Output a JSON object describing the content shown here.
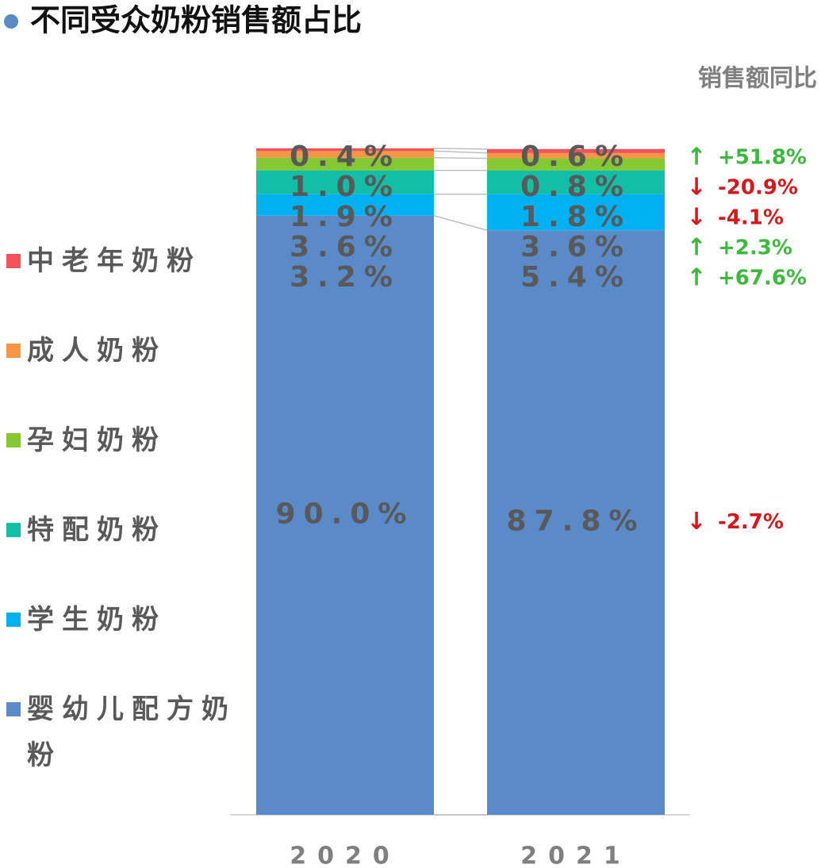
{
  "chart_data": {
    "type": "stacked_bar",
    "title": "不同受众奶粉销售额占比",
    "yoy_title": "销售额同比",
    "categories": [
      "2020",
      "2021"
    ],
    "series": [
      {
        "name": "婴幼儿配方奶粉",
        "color": "#5b8ac9",
        "values": [
          90.0,
          87.8
        ],
        "value_labels": [
          "90.0%",
          "87.8%"
        ],
        "yoy": -2.7,
        "yoy_label": "-2.7%"
      },
      {
        "name": "学生奶粉",
        "color": "#00b0f0",
        "values": [
          3.2,
          5.4
        ],
        "value_labels": [
          "3.2%",
          "5.4%"
        ],
        "yoy": 67.6,
        "yoy_label": "+67.6%"
      },
      {
        "name": "特配奶粉",
        "color": "#12bfa6",
        "values": [
          3.6,
          3.6
        ],
        "value_labels": [
          "3.6%",
          "3.6%"
        ],
        "yoy": 2.3,
        "yoy_label": "+2.3%"
      },
      {
        "name": "孕妇奶粉",
        "color": "#84c832",
        "values": [
          1.9,
          1.8
        ],
        "value_labels": [
          "1.9%",
          "1.8%"
        ],
        "yoy": -4.1,
        "yoy_label": "-4.1%"
      },
      {
        "name": "成人奶粉",
        "color": "#f79646",
        "values": [
          1.0,
          0.8
        ],
        "value_labels": [
          "1.0%",
          "0.8%"
        ],
        "yoy": -20.9,
        "yoy_label": "-20.9%"
      },
      {
        "name": "中老年奶粉",
        "color": "#f4525a",
        "values": [
          0.4,
          0.6
        ],
        "value_labels": [
          "0.4%",
          "0.6%"
        ],
        "yoy": 51.8,
        "yoy_label": "+51.8%"
      }
    ]
  }
}
